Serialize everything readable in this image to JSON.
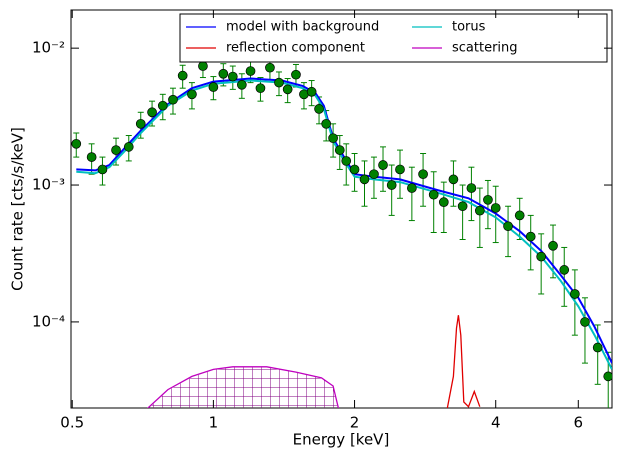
{
  "chart_data": {
    "type": "line",
    "xlabel": "Energy [keV]",
    "ylabel": "Count rate [cts/s/keV]",
    "xscale": "log",
    "yscale": "log",
    "xlim": [
      0.497,
      7.08
    ],
    "ylim": [
      2.35e-05,
      0.019
    ],
    "xticks": [
      0.5,
      1,
      2,
      4,
      6
    ],
    "yticks": [
      {
        "value": 0.0001,
        "label": "10⁻⁴"
      },
      {
        "value": 0.001,
        "label": "10⁻³"
      },
      {
        "value": 0.01,
        "label": "10⁻²"
      }
    ],
    "legend": "upper right",
    "data_points": {
      "color": "#008000",
      "x": [
        0.51,
        0.55,
        0.58,
        0.62,
        0.66,
        0.7,
        0.74,
        0.78,
        0.82,
        0.86,
        0.9,
        0.95,
        1.0,
        1.05,
        1.1,
        1.15,
        1.2,
        1.26,
        1.32,
        1.38,
        1.44,
        1.5,
        1.56,
        1.62,
        1.68,
        1.74,
        1.8,
        1.86,
        1.92,
        2.0,
        2.1,
        2.2,
        2.3,
        2.4,
        2.5,
        2.65,
        2.8,
        2.95,
        3.1,
        3.25,
        3.4,
        3.55,
        3.7,
        3.85,
        4.0,
        4.25,
        4.5,
        4.75,
        5.0,
        5.3,
        5.6,
        5.9,
        6.2,
        6.6,
        6.95
      ],
      "values": [
        0.002,
        0.0016,
        0.0013,
        0.0018,
        0.0019,
        0.0028,
        0.0034,
        0.0038,
        0.0042,
        0.0063,
        0.0046,
        0.0074,
        0.0052,
        0.0065,
        0.0062,
        0.0054,
        0.0068,
        0.0051,
        0.0072,
        0.0056,
        0.005,
        0.0064,
        0.0046,
        0.0048,
        0.0036,
        0.0028,
        0.0022,
        0.0018,
        0.0015,
        0.0013,
        0.0011,
        0.0012,
        0.0014,
        0.001,
        0.0013,
        0.00095,
        0.0012,
        0.00085,
        0.00075,
        0.0011,
        0.0007,
        0.00095,
        0.00065,
        0.00078,
        0.00068,
        0.0005,
        0.0006,
        0.00042,
        0.0003,
        0.00036,
        0.00024,
        0.00016,
        0.0001,
        6.5e-05,
        4e-05
      ],
      "errors": [
        0.0004,
        0.0004,
        0.0003,
        0.0004,
        0.0004,
        0.0006,
        0.0007,
        0.0008,
        0.0009,
        0.0012,
        0.001,
        0.0013,
        0.001,
        0.0012,
        0.0012,
        0.0011,
        0.0012,
        0.001,
        0.0013,
        0.0011,
        0.001,
        0.0012,
        0.001,
        0.001,
        0.0008,
        0.0007,
        0.0006,
        0.0005,
        0.0005,
        0.0004,
        0.0004,
        0.0004,
        0.0005,
        0.0004,
        0.0005,
        0.0004,
        0.0005,
        0.0004,
        0.0003,
        0.0004,
        0.0003,
        0.0004,
        0.0003,
        0.0003,
        0.0003,
        0.0002,
        0.0002,
        0.00018,
        0.00014,
        0.00015,
        0.00011,
        8e-05,
        5e-05,
        3e-05,
        2e-05
      ]
    },
    "series": [
      {
        "name": "model with background",
        "color": "#0000ff",
        "x": [
          0.51,
          0.56,
          0.6,
          0.65,
          0.7,
          0.8,
          0.9,
          1.0,
          1.2,
          1.4,
          1.55,
          1.65,
          1.72,
          1.8,
          1.9,
          2.0,
          2.2,
          2.5,
          3.0,
          3.5,
          4.0,
          4.5,
          5.0,
          5.5,
          6.0,
          6.5,
          7.08
        ],
        "values": [
          0.0013,
          0.00128,
          0.0014,
          0.0019,
          0.0025,
          0.0039,
          0.0051,
          0.0057,
          0.006,
          0.0058,
          0.0053,
          0.0047,
          0.0038,
          0.0022,
          0.0016,
          0.0012,
          0.00115,
          0.0011,
          0.00092,
          0.0008,
          0.00062,
          0.00046,
          0.00033,
          0.00022,
          0.00015,
          9.2e-05,
          5e-05
        ]
      },
      {
        "name": "torus",
        "color": "#00bfbf",
        "x": [
          0.51,
          0.56,
          0.6,
          0.65,
          0.7,
          0.8,
          0.9,
          1.0,
          1.2,
          1.4,
          1.55,
          1.65,
          1.72,
          1.8,
          1.9,
          2.0,
          2.2,
          2.5,
          3.0,
          3.5,
          4.0,
          4.5,
          5.0,
          5.5,
          6.0,
          6.5,
          7.08
        ],
        "values": [
          0.00125,
          0.00122,
          0.00135,
          0.0018,
          0.0024,
          0.0038,
          0.0049,
          0.0055,
          0.0058,
          0.0056,
          0.0051,
          0.0045,
          0.0036,
          0.0021,
          0.0015,
          0.00115,
          0.0011,
          0.00105,
          0.00088,
          0.00075,
          0.00058,
          0.00042,
          0.0003,
          0.0002,
          0.00013,
          8e-05,
          4.5e-05
        ]
      },
      {
        "name": "reflection component",
        "color": "#e00000",
        "x": [
          3.15,
          3.25,
          3.3,
          3.33,
          3.37,
          3.42,
          3.5,
          3.6,
          3.7
        ],
        "values": [
          2.3e-05,
          4e-05,
          9e-05,
          0.000112,
          8e-05,
          2.6e-05,
          2.4e-05,
          3.1e-05,
          2.4e-05
        ]
      },
      {
        "name": "scattering",
        "color": "#bf00bf",
        "x": [
          0.72,
          0.8,
          0.9,
          1.0,
          1.1,
          1.3,
          1.5,
          1.7,
          1.8,
          1.85
        ],
        "values": [
          2.3e-05,
          3.2e-05,
          4e-05,
          4.5e-05,
          4.7e-05,
          4.7e-05,
          4.3e-05,
          3.9e-05,
          3.4e-05,
          2.3e-05
        ]
      }
    ]
  }
}
